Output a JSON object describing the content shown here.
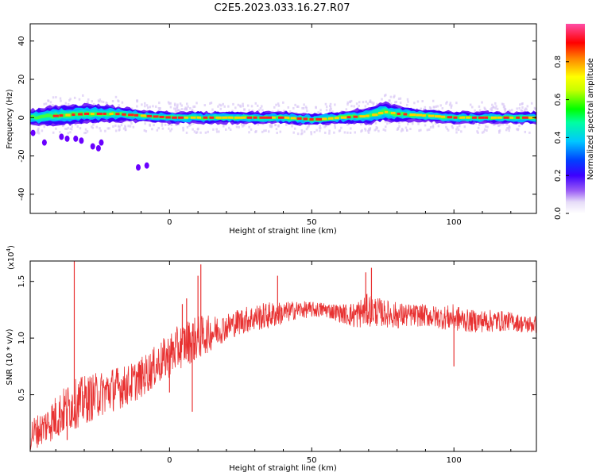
{
  "figure": {
    "title": "C2E5.2023.033.16.27.R07"
  },
  "chart_data": [
    {
      "type": "heatmap",
      "title": "",
      "xlabel": "Height of straight line (km)",
      "ylabel": "Frequency (Hz)",
      "xlim": [
        -49,
        129
      ],
      "ylim": [
        -50,
        49
      ],
      "xticks": [
        "0",
        "50",
        "100"
      ],
      "yticks": [
        "40",
        "20",
        "0",
        "-20",
        "-40"
      ],
      "colorbar": {
        "label": "Normalized spectral amplitude",
        "ticks": [
          "0.0",
          "0.2",
          "0.4",
          "0.6",
          "0.8"
        ],
        "range": [
          0,
          1
        ],
        "colormap": [
          "#ffffff",
          "#d9c8f5",
          "#6a00ff",
          "#0000ff",
          "#00c8ff",
          "#00ff80",
          "#00ff00",
          "#c8ff00",
          "#ffff00",
          "#ff8000",
          "#ff0000",
          "#ff4da6"
        ]
      },
      "band": {
        "description_points_x": [
          -49,
          -40,
          -30,
          -20,
          -10,
          0,
          10,
          20,
          30,
          40,
          50,
          60,
          70,
          75,
          80,
          90,
          100,
          110,
          120,
          129
        ],
        "center_hz": [
          0,
          1,
          2,
          2,
          1,
          0,
          0,
          0,
          0,
          0,
          -1,
          0,
          1,
          3,
          2,
          1,
          0,
          0,
          0,
          0
        ],
        "halfwidth_hz": [
          4,
          5,
          5,
          4,
          3,
          3,
          3,
          3,
          3,
          3,
          3,
          3,
          4,
          5,
          4,
          3,
          3,
          3,
          3,
          3
        ]
      },
      "outliers": [
        {
          "x": -38,
          "y": -10
        },
        {
          "x": -36,
          "y": -11
        },
        {
          "x": -33,
          "y": -11
        },
        {
          "x": -31,
          "y": -12
        },
        {
          "x": -27,
          "y": -15
        },
        {
          "x": -25,
          "y": -16
        },
        {
          "x": -24,
          "y": -13
        },
        {
          "x": -44,
          "y": -13
        },
        {
          "x": -8,
          "y": -25
        },
        {
          "x": -11,
          "y": -26
        },
        {
          "x": -48,
          "y": -8
        }
      ]
    },
    {
      "type": "line",
      "title": "",
      "xlabel": "Height of straight line (km)",
      "ylabel": "SNR (10 * v/v)",
      "yscale_label": "(x10",
      "yscale_exp": "4",
      "yscale_close": ")",
      "xlim": [
        -49,
        129
      ],
      "ylim": [
        0.0,
        1.68
      ],
      "xticks": [
        "0",
        "50",
        "100"
      ],
      "yticks": [
        "0.5",
        "1.0",
        "1.5"
      ],
      "color": "#e83232",
      "series": [
        {
          "x": [
            -49,
            -45,
            -40,
            -35,
            -30,
            -25,
            -20,
            -15,
            -10,
            -5,
            0,
            5,
            10,
            15,
            20,
            25,
            30,
            35,
            40,
            45,
            50,
            55,
            60,
            65,
            70,
            75,
            80,
            85,
            90,
            95,
            100,
            105,
            110,
            115,
            120,
            125,
            129
          ],
          "values": [
            0.15,
            0.2,
            0.3,
            0.4,
            0.45,
            0.5,
            0.55,
            0.58,
            0.65,
            0.75,
            0.85,
            0.95,
            1.0,
            1.05,
            1.1,
            1.15,
            1.18,
            1.2,
            1.22,
            1.25,
            1.25,
            1.25,
            1.22,
            1.2,
            1.25,
            1.22,
            1.2,
            1.2,
            1.2,
            1.18,
            1.18,
            1.15,
            1.15,
            1.15,
            1.15,
            1.12,
            1.12
          ],
          "spread": [
            0.15,
            0.15,
            0.2,
            0.22,
            0.22,
            0.2,
            0.2,
            0.18,
            0.18,
            0.18,
            0.2,
            0.2,
            0.2,
            0.15,
            0.12,
            0.12,
            0.12,
            0.12,
            0.1,
            0.08,
            0.07,
            0.07,
            0.08,
            0.12,
            0.15,
            0.12,
            0.12,
            0.1,
            0.1,
            0.1,
            0.12,
            0.1,
            0.1,
            0.1,
            0.08,
            0.08,
            0.08
          ],
          "spikes": [
            {
              "x": -33.5,
              "y": 1.68
            },
            {
              "x": 11,
              "y": 1.65
            },
            {
              "x": 10,
              "y": 1.55
            },
            {
              "x": 4.5,
              "y": 1.3
            },
            {
              "x": 6,
              "y": 1.35
            },
            {
              "x": 38,
              "y": 1.55
            },
            {
              "x": 69,
              "y": 1.58
            },
            {
              "x": 71,
              "y": 1.62
            },
            {
              "x": 100,
              "y": 0.75
            },
            {
              "x": -36,
              "y": 0.1
            },
            {
              "x": 8,
              "y": 0.35
            },
            {
              "x": 0,
              "y": 0.52
            }
          ]
        }
      ]
    }
  ]
}
